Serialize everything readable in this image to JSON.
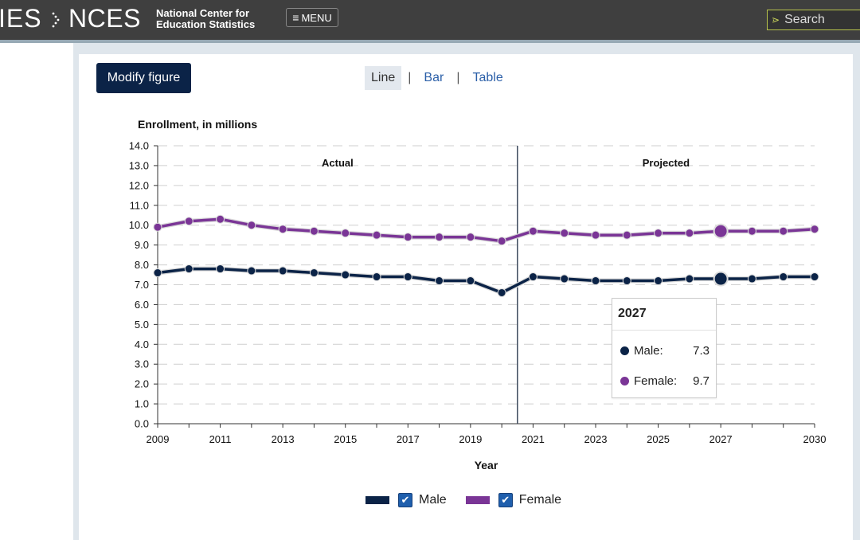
{
  "header": {
    "logo_ies": "IES",
    "logo_nces": "NCES",
    "logo_sub_line1": "National Center for",
    "logo_sub_line2": "Education Statistics",
    "menu_label": "MENU",
    "search_placeholder": "Search"
  },
  "controls": {
    "modify_label": "Modify figure",
    "tabs": [
      {
        "label": "Line",
        "active": true
      },
      {
        "label": "Bar",
        "active": false
      },
      {
        "label": "Table",
        "active": false
      }
    ]
  },
  "tooltip": {
    "year": "2027",
    "rows": [
      {
        "label": "Male:",
        "value": "7.3",
        "color": "#0b2347"
      },
      {
        "label": "Female:",
        "value": "9.7",
        "color": "#7a3596"
      }
    ]
  },
  "legend": [
    {
      "label": "Male",
      "color": "#0b2347"
    },
    {
      "label": "Female",
      "color": "#7a3596"
    }
  ],
  "chart_data": {
    "type": "line",
    "ylabel": "Enrollment, in millions",
    "xlabel": "Year",
    "ylim": [
      0,
      14
    ],
    "xlim": [
      2009,
      2030
    ],
    "yticks": [
      "0.0",
      "1.0",
      "2.0",
      "3.0",
      "4.0",
      "5.0",
      "6.0",
      "7.0",
      "8.0",
      "9.0",
      "10.0",
      "11.0",
      "12.0",
      "13.0",
      "14.0"
    ],
    "xticks": [
      "2009",
      "2011",
      "2013",
      "2015",
      "2017",
      "2019",
      "2021",
      "2023",
      "2025",
      "2027",
      "2030"
    ],
    "grid": "horizontal-dashed",
    "divider_x": 2020.5,
    "region_labels": [
      "Actual",
      "Projected"
    ],
    "highlight_x": 2027,
    "x": [
      2009,
      2010,
      2011,
      2012,
      2013,
      2014,
      2015,
      2016,
      2017,
      2018,
      2019,
      2020,
      2021,
      2022,
      2023,
      2024,
      2025,
      2026,
      2027,
      2028,
      2029,
      2030
    ],
    "series": [
      {
        "name": "Male",
        "color": "#0b2347",
        "values": [
          7.6,
          7.8,
          7.8,
          7.7,
          7.7,
          7.6,
          7.5,
          7.4,
          7.4,
          7.2,
          7.2,
          6.6,
          7.4,
          7.3,
          7.2,
          7.2,
          7.2,
          7.3,
          7.3,
          7.3,
          7.4,
          7.4
        ]
      },
      {
        "name": "Female",
        "color": "#7a3596",
        "values": [
          9.9,
          10.2,
          10.3,
          10.0,
          9.8,
          9.7,
          9.6,
          9.5,
          9.4,
          9.4,
          9.4,
          9.2,
          9.7,
          9.6,
          9.5,
          9.5,
          9.6,
          9.6,
          9.7,
          9.7,
          9.7,
          9.8
        ]
      }
    ]
  }
}
